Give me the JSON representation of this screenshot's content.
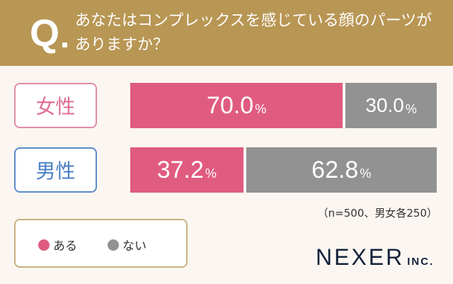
{
  "header": {
    "q_mark": "Q",
    "title": "あなたはコンプレックスを感じている顔のパーツがありますか？"
  },
  "colors": {
    "header": "#B89654",
    "aru": "#E05B80",
    "nai": "#929292",
    "female_border": "#E08BA6",
    "male_border": "#5B8BC9",
    "female_text": "#E06C93",
    "male_text": "#4A7FC4"
  },
  "chart_data": {
    "type": "bar",
    "stacked": true,
    "orientation": "horizontal",
    "title": "あなたはコンプレックスを感じている顔のパーツがありますか？",
    "categories": [
      "女性",
      "男性"
    ],
    "series": [
      {
        "name": "ある",
        "values": [
          70.0,
          37.2
        ],
        "labels": [
          "70.0",
          "37.2"
        ]
      },
      {
        "name": "ない",
        "values": [
          30.0,
          62.8
        ],
        "labels": [
          "30.0",
          "62.8"
        ]
      }
    ],
    "unit": "%",
    "xlim": [
      0,
      100
    ],
    "legend": "bottom-left",
    "note": "（n=500、男女各250）"
  },
  "brand": {
    "name": "NEXER",
    "suffix": "INC."
  }
}
